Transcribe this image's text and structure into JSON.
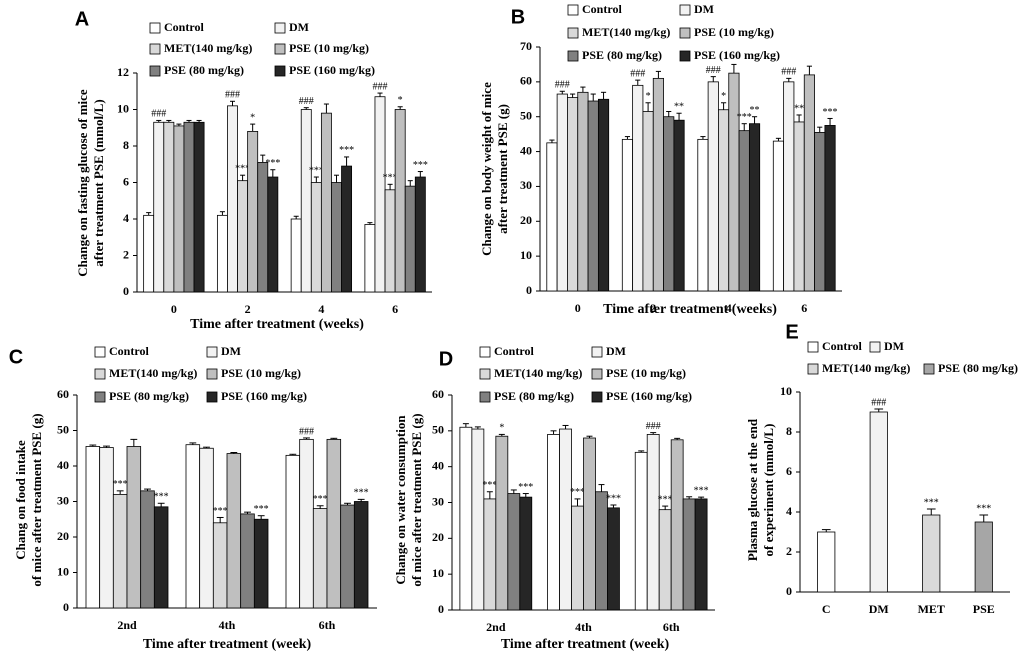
{
  "chart_data": [
    {
      "type": "bar",
      "label": "A",
      "ylabel": [
        "Change on fasting glucose of mice",
        "after  treatment PSE (mmol/L)"
      ],
      "xlabel": "Time after treatment (weeks)",
      "categories": [
        "0",
        "2",
        "4",
        "6"
      ],
      "ylim": [
        0,
        12
      ],
      "yticks": [
        0,
        2,
        4,
        6,
        8,
        10,
        12
      ],
      "series": [
        {
          "name": "Control",
          "color": "#ffffff",
          "values": [
            4.2,
            4.2,
            4.0,
            3.7
          ],
          "errors": [
            0.15,
            0.2,
            0.15,
            0.1
          ],
          "annotations": [
            null,
            null,
            null,
            null
          ]
        },
        {
          "name": "DM",
          "color": "#f2f2f2",
          "values": [
            9.3,
            10.2,
            10.0,
            10.7
          ],
          "errors": [
            0.1,
            0.25,
            0.1,
            0.2
          ],
          "annotations": [
            "###",
            "###",
            "###",
            "###"
          ]
        },
        {
          "name": "MET(140 mg/kg)",
          "color": "#d9d9d9",
          "values": [
            9.3,
            6.1,
            6.0,
            5.6
          ],
          "errors": [
            0.1,
            0.3,
            0.3,
            0.3
          ],
          "annotations": [
            null,
            "***",
            "***",
            "***"
          ]
        },
        {
          "name": "PSE (10 mg/kg)",
          "color": "#bfbfbf",
          "values": [
            9.1,
            8.8,
            9.8,
            10.0
          ],
          "errors": [
            0.1,
            0.4,
            0.5,
            0.15
          ],
          "annotations": [
            null,
            "*",
            null,
            "*"
          ]
        },
        {
          "name": "PSE (80 mg/kg)",
          "color": "#808080",
          "values": [
            9.3,
            7.1,
            6.0,
            5.8
          ],
          "errors": [
            0.1,
            0.4,
            0.4,
            0.3
          ],
          "annotations": [
            null,
            null,
            null,
            null
          ]
        },
        {
          "name": "PSE (160 mg/kg)",
          "color": "#262626",
          "values": [
            9.3,
            6.3,
            6.9,
            6.3
          ],
          "errors": [
            0.1,
            0.4,
            0.5,
            0.3
          ],
          "annotations": [
            null,
            "***",
            "***",
            "***"
          ]
        }
      ]
    },
    {
      "type": "bar",
      "label": "B",
      "ylabel": [
        "Change on body weight of mice",
        "after  treatment PSE (g)"
      ],
      "xlabel": "Time after treatment (weeks)",
      "categories": [
        "0",
        "2",
        "4",
        "6"
      ],
      "ylim": [
        0,
        70
      ],
      "yticks": [
        0,
        10,
        20,
        30,
        40,
        50,
        60,
        70
      ],
      "series": [
        {
          "name": "Control",
          "color": "#ffffff",
          "values": [
            42.5,
            43.5,
            43.5,
            43
          ],
          "errors": [
            0.8,
            0.8,
            0.8,
            0.8
          ],
          "annotations": [
            null,
            null,
            null,
            null
          ]
        },
        {
          "name": "DM",
          "color": "#f2f2f2",
          "values": [
            56.5,
            59,
            60,
            60
          ],
          "errors": [
            0.8,
            1.5,
            1.5,
            1.0
          ],
          "annotations": [
            "###",
            "###",
            "###",
            "###"
          ]
        },
        {
          "name": "MET(140 mg/kg)",
          "color": "#d9d9d9",
          "values": [
            55.5,
            51.5,
            52,
            48.5
          ],
          "errors": [
            1.0,
            2.5,
            2.0,
            2.0
          ],
          "annotations": [
            null,
            "*",
            "*",
            "**"
          ]
        },
        {
          "name": "PSE (10 mg/kg)",
          "color": "#bfbfbf",
          "values": [
            57,
            61,
            62.5,
            62
          ],
          "errors": [
            1.5,
            2.0,
            2.5,
            2.5
          ],
          "annotations": [
            null,
            null,
            null,
            null
          ]
        },
        {
          "name": "PSE (80 mg/kg)",
          "color": "#808080",
          "values": [
            54.5,
            50,
            46,
            45.5
          ],
          "errors": [
            2.0,
            1.5,
            2.0,
            1.5
          ],
          "annotations": [
            null,
            null,
            "***",
            null
          ]
        },
        {
          "name": "PSE (160 mg/kg)",
          "color": "#262626",
          "values": [
            55,
            49,
            48,
            47.5
          ],
          "errors": [
            2.0,
            2.0,
            2.0,
            2.0
          ],
          "annotations": [
            null,
            "**",
            "**",
            "***"
          ]
        }
      ]
    },
    {
      "type": "bar",
      "label": "C",
      "ylabel": [
        "Chang on food intake",
        "of mice  after treatment PSE (g)"
      ],
      "xlabel": "Time after treatment (week)",
      "categories": [
        "2nd",
        "4th",
        "6th"
      ],
      "ylim": [
        0,
        60
      ],
      "yticks": [
        0,
        10,
        20,
        30,
        40,
        50,
        60
      ],
      "series": [
        {
          "name": "Control",
          "color": "#ffffff",
          "values": [
            45.5,
            46,
            43
          ],
          "errors": [
            0.4,
            0.5,
            0.3
          ],
          "annotations": [
            null,
            null,
            null
          ]
        },
        {
          "name": "DM",
          "color": "#f2f2f2",
          "values": [
            45.2,
            45,
            47.5
          ],
          "errors": [
            0.4,
            0.3,
            0.4
          ],
          "annotations": [
            null,
            null,
            "###"
          ]
        },
        {
          "name": "MET(140 mg/kg)",
          "color": "#d9d9d9",
          "values": [
            32,
            24,
            28
          ],
          "errors": [
            1.0,
            1.5,
            0.8
          ],
          "annotations": [
            "***",
            "***",
            "***"
          ]
        },
        {
          "name": "PSE (10 mg/kg)",
          "color": "#bfbfbf",
          "values": [
            45.5,
            43.5,
            47.5
          ],
          "errors": [
            2.0,
            0.3,
            0.3
          ],
          "annotations": [
            null,
            null,
            null
          ]
        },
        {
          "name": "PSE (80 mg/kg)",
          "color": "#808080",
          "values": [
            33,
            26.5,
            29
          ],
          "errors": [
            0.5,
            0.5,
            0.5
          ],
          "annotations": [
            null,
            null,
            null
          ]
        },
        {
          "name": "PSE (160 mg/kg)",
          "color": "#262626",
          "values": [
            28.5,
            25,
            30
          ],
          "errors": [
            1.0,
            1.0,
            0.6
          ],
          "annotations": [
            "***",
            "***",
            "***"
          ]
        }
      ]
    },
    {
      "type": "bar",
      "label": "D",
      "ylabel": [
        "Change  on water  consumption",
        "of mice  after treatment PSE (g)"
      ],
      "xlabel": "Time after treatment (week)",
      "categories": [
        "2nd",
        "4th",
        "6th"
      ],
      "ylim": [
        0,
        60
      ],
      "yticks": [
        0,
        10,
        20,
        30,
        40,
        50,
        60
      ],
      "series": [
        {
          "name": "Control",
          "color": "#ffffff",
          "values": [
            51,
            49,
            44
          ],
          "errors": [
            1.0,
            1.0,
            0.4
          ],
          "annotations": [
            null,
            null,
            null
          ]
        },
        {
          "name": "DM",
          "color": "#f2f2f2",
          "values": [
            50.5,
            50.5,
            49
          ],
          "errors": [
            0.6,
            1.0,
            0.5
          ],
          "annotations": [
            null,
            null,
            "###"
          ]
        },
        {
          "name": "MET(140 mg/kg)",
          "color": "#d9d9d9",
          "values": [
            31,
            29,
            28
          ],
          "errors": [
            2.0,
            2.0,
            1.0
          ],
          "annotations": [
            "***",
            "***",
            "***"
          ]
        },
        {
          "name": "PSE (10 mg/kg)",
          "color": "#bfbfbf",
          "values": [
            48.5,
            48,
            47.5
          ],
          "errors": [
            0.5,
            0.5,
            0.4
          ],
          "annotations": [
            "*",
            null,
            null
          ]
        },
        {
          "name": "PSE (80 mg/kg)",
          "color": "#808080",
          "values": [
            32.5,
            33,
            31
          ],
          "errors": [
            1.0,
            2.0,
            0.6
          ],
          "annotations": [
            null,
            null,
            null
          ]
        },
        {
          "name": "PSE (160 mg/kg)",
          "color": "#262626",
          "values": [
            31.5,
            28.5,
            31
          ],
          "errors": [
            1.0,
            0.8,
            0.5
          ],
          "annotations": [
            "***",
            "***",
            "***"
          ]
        }
      ]
    },
    {
      "type": "bar-single",
      "label": "E",
      "ylabel": [
        "Plasma glucose at the end",
        "of experiment (mmol/L)"
      ],
      "categories": [
        "C",
        "DM",
        "MET",
        "PSE"
      ],
      "legend": [
        "Control",
        "DM",
        "MET(140 mg/kg)",
        "PSE (80 mg/kg)"
      ],
      "colors": [
        "#ffffff",
        "#f2f2f2",
        "#d9d9d9",
        "#a6a6a6"
      ],
      "ylim": [
        0,
        10
      ],
      "yticks": [
        0,
        2,
        4,
        6,
        8,
        10
      ],
      "values": [
        3.0,
        9.0,
        3.85,
        3.5
      ],
      "errors": [
        0.12,
        0.15,
        0.3,
        0.35
      ],
      "annotations": [
        null,
        "###",
        "***",
        "***"
      ]
    }
  ]
}
